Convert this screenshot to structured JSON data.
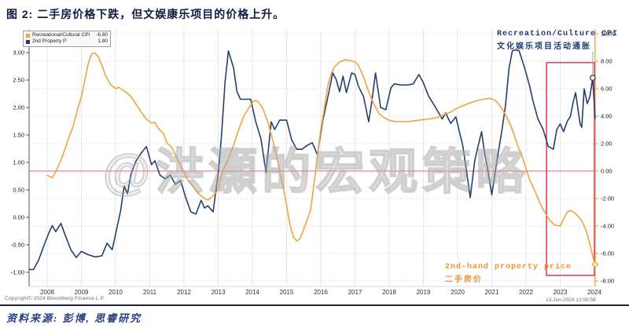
{
  "title": "图 2: 二手房价格下跌，但文娱康乐项目的价格上升。",
  "watermark": "@洪灝的宏观策略",
  "legend": {
    "items": [
      {
        "label": "Recreational/Cultural CPI",
        "value": "-6.80",
        "color": "#f2a33c"
      },
      {
        "label": "2nd Property P",
        "value": "1.80",
        "color": "#1f3a6e"
      }
    ]
  },
  "annotations": {
    "cpi_en": "Recreation/Culture CPI",
    "cpi_cn": "文化娱乐项目活动通胀",
    "property_en": "2nd-hand property price",
    "property_cn": "二手房价"
  },
  "footer": {
    "copyright": "Copyright© 2024 Bloomberg Finance L.P.",
    "timestamp": "13-Jun-2024 12:00:58",
    "source": "资料来源: 彭博, 思睿研究"
  },
  "chart_data": {
    "type": "line",
    "x_ticks": [
      "2008",
      "2009",
      "2010",
      "2011",
      "2012",
      "2013",
      "2014",
      "2015",
      "2016",
      "2017",
      "2018",
      "2019",
      "2020",
      "2021",
      "2022",
      "2023",
      "2024"
    ],
    "left_axis": {
      "ticks": [
        "3.00",
        "2.50",
        "2.00",
        "1.50",
        "1.00",
        "0.50",
        "0.00",
        "-0.50",
        "-1.00"
      ],
      "min": -1.0,
      "max": 3.0
    },
    "right_axis": {
      "ticks": [
        "10.00",
        "8.00",
        "6.00",
        "4.00",
        "2.00",
        "0.00",
        "-2.00",
        "-4.00",
        "-6.00",
        "-8.00"
      ],
      "min": -8.0,
      "max": 10.0,
      "color": "#f2a33c"
    },
    "zero_line": {
      "axis": "right",
      "value": 0.0,
      "color": "#ec8290"
    },
    "highlight_box": {
      "x1": 2022.6,
      "x2": 2024.0,
      "top_right_axis": 7.9,
      "bottom_right_axis": -7.6,
      "color": "#d9485e"
    },
    "grid": true,
    "legend_position": "top-left",
    "series": [
      {
        "name": "2nd Property P (navy line, left axis)",
        "axis": "left",
        "color": "#24406f",
        "last_value": 1.8,
        "points": [
          [
            2007.47,
            -0.95
          ],
          [
            2007.6,
            -0.95
          ],
          [
            2007.75,
            -0.78
          ],
          [
            2007.9,
            -0.52
          ],
          [
            2008.05,
            -0.28
          ],
          [
            2008.15,
            -0.15
          ],
          [
            2008.25,
            -0.26
          ],
          [
            2008.4,
            -0.11
          ],
          [
            2008.55,
            -0.36
          ],
          [
            2008.7,
            -0.6
          ],
          [
            2008.85,
            -0.73
          ],
          [
            2009.0,
            -0.62
          ],
          [
            2009.2,
            -0.68
          ],
          [
            2009.4,
            -0.72
          ],
          [
            2009.6,
            -0.7
          ],
          [
            2009.75,
            -0.47
          ],
          [
            2009.9,
            -0.59
          ],
          [
            2010.05,
            -0.16
          ],
          [
            2010.15,
            0.13
          ],
          [
            2010.25,
            0.57
          ],
          [
            2010.35,
            0.43
          ],
          [
            2010.45,
            0.79
          ],
          [
            2010.6,
            1.03
          ],
          [
            2010.75,
            1.17
          ],
          [
            2010.9,
            1.29
          ],
          [
            2011.05,
            0.96
          ],
          [
            2011.15,
            1.03
          ],
          [
            2011.3,
            0.77
          ],
          [
            2011.45,
            0.7
          ],
          [
            2011.6,
            0.77
          ],
          [
            2011.75,
            0.6
          ],
          [
            2011.9,
            0.67
          ],
          [
            2012.05,
            0.36
          ],
          [
            2012.2,
            0.1
          ],
          [
            2012.35,
            0.06
          ],
          [
            2012.5,
            0.31
          ],
          [
            2012.6,
            0.17
          ],
          [
            2012.7,
            0.21
          ],
          [
            2012.85,
            0.1
          ],
          [
            2013.0,
            0.79
          ],
          [
            2013.1,
            1.5
          ],
          [
            2013.2,
            2.46
          ],
          [
            2013.3,
            3.03
          ],
          [
            2013.45,
            2.72
          ],
          [
            2013.55,
            2.29
          ],
          [
            2013.65,
            2.15
          ],
          [
            2013.95,
            2.15
          ],
          [
            2014.1,
            1.74
          ],
          [
            2014.25,
            1.43
          ],
          [
            2014.4,
            0.81
          ],
          [
            2014.55,
            1.74
          ],
          [
            2014.65,
            1.6
          ],
          [
            2014.8,
            1.77
          ],
          [
            2015.0,
            1.77
          ],
          [
            2015.15,
            1.41
          ],
          [
            2015.3,
            1.24
          ],
          [
            2015.45,
            1.24
          ],
          [
            2015.6,
            1.31
          ],
          [
            2015.75,
            1.36
          ],
          [
            2015.9,
            1.14
          ],
          [
            2016.05,
            1.74
          ],
          [
            2016.2,
            2.17
          ],
          [
            2016.35,
            2.63
          ],
          [
            2016.45,
            2.51
          ],
          [
            2016.55,
            2.29
          ],
          [
            2016.65,
            2.57
          ],
          [
            2016.75,
            2.27
          ],
          [
            2016.9,
            2.63
          ],
          [
            2017.0,
            2.6
          ],
          [
            2017.1,
            2.39
          ],
          [
            2017.25,
            2.2
          ],
          [
            2017.4,
            1.74
          ],
          [
            2017.5,
            2.15
          ],
          [
            2017.6,
            2.63
          ],
          [
            2017.75,
            2.0
          ],
          [
            2017.9,
            1.96
          ],
          [
            2018.05,
            2.36
          ],
          [
            2018.15,
            2.43
          ],
          [
            2018.35,
            2.41
          ],
          [
            2018.55,
            2.41
          ],
          [
            2018.7,
            2.43
          ],
          [
            2018.87,
            2.6
          ],
          [
            2019.0,
            2.45
          ],
          [
            2019.15,
            2.21
          ],
          [
            2019.3,
            2.06
          ],
          [
            2019.45,
            1.9
          ],
          [
            2019.55,
            1.79
          ],
          [
            2019.65,
            1.9
          ],
          [
            2019.8,
            1.71
          ],
          [
            2019.95,
            1.83
          ],
          [
            2020.15,
            1.31
          ],
          [
            2020.25,
            0.89
          ],
          [
            2020.37,
            0.36
          ],
          [
            2020.5,
            1.03
          ],
          [
            2020.6,
            1.3
          ],
          [
            2020.7,
            1.56
          ],
          [
            2020.8,
            1.13
          ],
          [
            2020.9,
            0.8
          ],
          [
            2021.0,
            0.41
          ],
          [
            2021.15,
            1.03
          ],
          [
            2021.3,
            1.6
          ],
          [
            2021.4,
            2.03
          ],
          [
            2021.5,
            2.7
          ],
          [
            2021.6,
            3.03
          ],
          [
            2021.7,
            3.05
          ],
          [
            2021.8,
            3.03
          ],
          [
            2021.95,
            2.74
          ],
          [
            2022.1,
            2.41
          ],
          [
            2022.2,
            2.13
          ],
          [
            2022.35,
            1.79
          ],
          [
            2022.5,
            1.6
          ],
          [
            2022.65,
            1.29
          ],
          [
            2022.8,
            1.24
          ],
          [
            2022.9,
            1.6
          ],
          [
            2023.0,
            1.7
          ],
          [
            2023.1,
            1.56
          ],
          [
            2023.2,
            1.74
          ],
          [
            2023.3,
            1.84
          ],
          [
            2023.38,
            2.1
          ],
          [
            2023.45,
            2.27
          ],
          [
            2023.58,
            1.71
          ],
          [
            2023.63,
            1.64
          ],
          [
            2023.7,
            2.34
          ],
          [
            2023.79,
            2.07
          ],
          [
            2023.87,
            2.2
          ],
          [
            2023.95,
            2.54
          ],
          [
            2024.02,
            1.8
          ]
        ]
      },
      {
        "name": "Recreational/Cultural CPI (orange line, right axis)",
        "axis": "right",
        "color": "#f2a33c",
        "last_value": -6.8,
        "points": [
          [
            2008.0,
            -0.3
          ],
          [
            2008.15,
            -0.5
          ],
          [
            2008.3,
            0.2
          ],
          [
            2008.45,
            1.1
          ],
          [
            2008.6,
            2.2
          ],
          [
            2008.75,
            3.2
          ],
          [
            2008.9,
            4.6
          ],
          [
            2009.0,
            5.4
          ],
          [
            2009.1,
            6.6
          ],
          [
            2009.2,
            7.8
          ],
          [
            2009.3,
            8.55
          ],
          [
            2009.4,
            8.6
          ],
          [
            2009.5,
            8.3
          ],
          [
            2009.6,
            7.7
          ],
          [
            2009.7,
            7.0
          ],
          [
            2009.85,
            6.3
          ],
          [
            2010.0,
            6.0
          ],
          [
            2010.1,
            6.1
          ],
          [
            2010.2,
            5.9
          ],
          [
            2010.3,
            5.77
          ],
          [
            2010.45,
            5.43
          ],
          [
            2010.6,
            4.86
          ],
          [
            2010.75,
            4.3
          ],
          [
            2010.9,
            3.77
          ],
          [
            2011.05,
            3.49
          ],
          [
            2011.15,
            3.55
          ],
          [
            2011.25,
            3.1
          ],
          [
            2011.4,
            2.74
          ],
          [
            2011.5,
            2.06
          ],
          [
            2011.65,
            1.71
          ],
          [
            2011.8,
            0.91
          ],
          [
            2011.95,
            0.17
          ],
          [
            2012.1,
            -0.57
          ],
          [
            2012.3,
            -1.26
          ],
          [
            2012.45,
            -1.71
          ],
          [
            2012.6,
            -2.0
          ],
          [
            2012.7,
            -2.11
          ],
          [
            2012.85,
            -1.8
          ],
          [
            2013.0,
            -1.37
          ],
          [
            2013.1,
            -0.23
          ],
          [
            2013.3,
            0.91
          ],
          [
            2013.45,
            1.89
          ],
          [
            2013.6,
            3.03
          ],
          [
            2013.75,
            4.0
          ],
          [
            2013.9,
            4.63
          ],
          [
            2014.05,
            5.14
          ],
          [
            2014.15,
            5.1
          ],
          [
            2014.3,
            4.6
          ],
          [
            2014.45,
            3.6
          ],
          [
            2014.6,
            2.2
          ],
          [
            2014.75,
            0.6
          ],
          [
            2014.9,
            -1.2
          ],
          [
            2015.0,
            -2.5
          ],
          [
            2015.1,
            -3.9
          ],
          [
            2015.2,
            -4.8
          ],
          [
            2015.3,
            -5.1
          ],
          [
            2015.4,
            -4.9
          ],
          [
            2015.55,
            -3.9
          ],
          [
            2015.7,
            -2.86
          ],
          [
            2015.8,
            -0.97
          ],
          [
            2015.9,
            1.14
          ],
          [
            2016.0,
            3.03
          ],
          [
            2016.1,
            4.46
          ],
          [
            2016.2,
            6.17
          ],
          [
            2016.3,
            7.03
          ],
          [
            2016.4,
            7.6
          ],
          [
            2016.55,
            7.95
          ],
          [
            2016.7,
            8.1
          ],
          [
            2016.85,
            8.05
          ],
          [
            2017.0,
            7.95
          ],
          [
            2017.1,
            7.7
          ],
          [
            2017.25,
            6.86
          ],
          [
            2017.4,
            5.77
          ],
          [
            2017.55,
            4.9
          ],
          [
            2017.7,
            4.17
          ],
          [
            2017.85,
            3.89
          ],
          [
            2018.0,
            3.7
          ],
          [
            2018.2,
            3.6
          ],
          [
            2018.4,
            3.6
          ],
          [
            2018.6,
            3.62
          ],
          [
            2018.8,
            3.68
          ],
          [
            2019.0,
            3.75
          ],
          [
            2019.2,
            3.8
          ],
          [
            2019.4,
            3.9
          ],
          [
            2019.6,
            4.1
          ],
          [
            2019.8,
            4.3
          ],
          [
            2020.0,
            4.6
          ],
          [
            2020.2,
            4.8
          ],
          [
            2020.4,
            5.0
          ],
          [
            2020.6,
            5.15
          ],
          [
            2020.8,
            5.25
          ],
          [
            2020.95,
            5.3
          ],
          [
            2021.1,
            5.15
          ],
          [
            2021.2,
            4.9
          ],
          [
            2021.35,
            4.34
          ],
          [
            2021.5,
            3.6
          ],
          [
            2021.6,
            3.03
          ],
          [
            2021.75,
            1.9
          ],
          [
            2021.85,
            1.31
          ],
          [
            2022.0,
            0.2
          ],
          [
            2022.1,
            -0.57
          ],
          [
            2022.25,
            -1.4
          ],
          [
            2022.4,
            -2.29
          ],
          [
            2022.55,
            -3.0
          ],
          [
            2022.7,
            -3.6
          ],
          [
            2022.85,
            -3.95
          ],
          [
            2023.0,
            -4.0
          ],
          [
            2023.1,
            -3.5
          ],
          [
            2023.2,
            -3.0
          ],
          [
            2023.3,
            -2.86
          ],
          [
            2023.45,
            -3.1
          ],
          [
            2023.55,
            -3.37
          ],
          [
            2023.65,
            -3.7
          ],
          [
            2023.75,
            -4.3
          ],
          [
            2023.85,
            -5.14
          ],
          [
            2023.95,
            -6.2
          ],
          [
            2024.02,
            -6.8
          ]
        ]
      }
    ],
    "markers": [
      {
        "series": 0,
        "year": 2023.95,
        "value": 2.54,
        "shape": "circle",
        "tracker_line": true
      },
      {
        "series": 1,
        "year": 2024.02,
        "value": -6.8,
        "shape": "diamond",
        "tracker_line": false
      }
    ]
  }
}
